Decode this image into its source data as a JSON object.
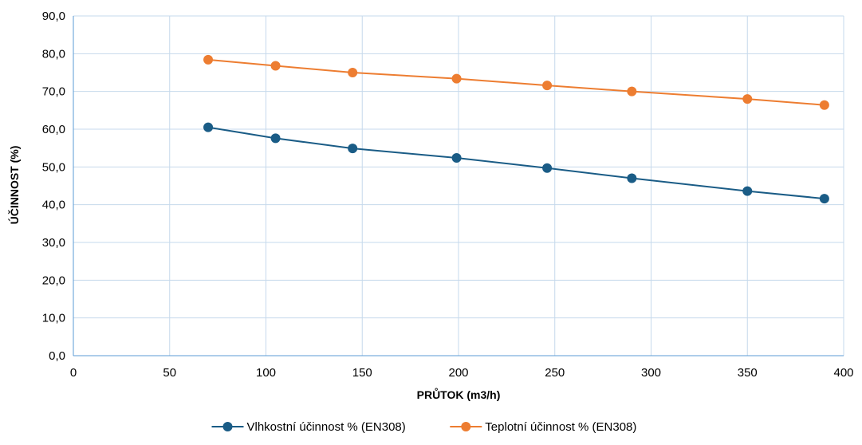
{
  "chart_data": {
    "type": "line",
    "title": "",
    "xlabel": "PRŮTOK (m3/h)",
    "ylabel": "ÚČINNOST (%)",
    "xlim": [
      0,
      400
    ],
    "ylim": [
      0,
      90
    ],
    "xticks": [
      0,
      50,
      100,
      150,
      200,
      250,
      300,
      350,
      400
    ],
    "yticks": [
      0,
      10,
      20,
      30,
      40,
      50,
      60,
      70,
      80,
      90
    ],
    "ytick_labels": [
      "0,0",
      "10,0",
      "20,0",
      "30,0",
      "40,0",
      "50,0",
      "60,0",
      "70,0",
      "80,0",
      "90,0"
    ],
    "grid": true,
    "legend_position": "bottom",
    "series": [
      {
        "name": "Vlhkostní účinnost % (EN308)",
        "color": "#1a5c86",
        "x": [
          70,
          105,
          145,
          199,
          246,
          290,
          350,
          390
        ],
        "y": [
          60.5,
          57.6,
          54.9,
          52.4,
          49.7,
          47.0,
          43.6,
          41.6
        ]
      },
      {
        "name": "Teplotní účinnost % (EN308)",
        "color": "#ed7d31",
        "x": [
          70,
          105,
          145,
          199,
          246,
          290,
          350,
          390
        ],
        "y": [
          78.4,
          76.8,
          75.0,
          73.4,
          71.6,
          70.0,
          68.0,
          66.4
        ]
      }
    ]
  }
}
